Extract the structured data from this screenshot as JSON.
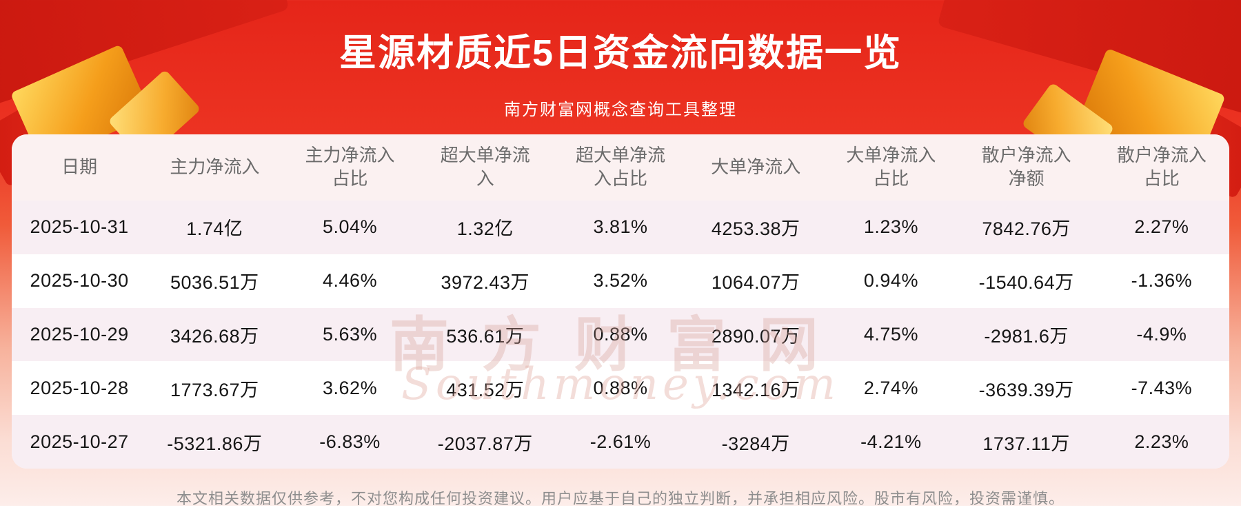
{
  "page": {
    "title": "星源材质近5日资金流向数据一览",
    "subtitle": "南方财富网概念查询工具整理",
    "disclaimer": "本文相关数据仅供参考，不对您构成任何投资建议。用户应基于自己的独立判断，并承担相应风险。股市有风险，投资需谨慎。"
  },
  "watermark": {
    "cn": "南方财富网",
    "en": "Southmoney.com"
  },
  "colors": {
    "banner_red": "#e8251c",
    "deep_red": "#c9170f",
    "gold": "#f5a11f",
    "card_bg": "#ffffff",
    "row_pink": "#f8eef3",
    "header_bg": "#fbf1f1",
    "header_text": "#6b6b6b",
    "cell_text": "#161616",
    "footer_text": "#8e8e8e"
  },
  "table": {
    "headers": [
      "日期",
      "主力净流入",
      "主力净流入\n占比",
      "超大单净流\n入",
      "超大单净流\n入占比",
      "大单净流入",
      "大单净流入\n占比",
      "散户净流入\n净额",
      "散户净流入\n占比"
    ],
    "rows": [
      [
        "2025-10-31",
        "1.74亿",
        "5.04%",
        "1.32亿",
        "3.81%",
        "4253.38万",
        "1.23%",
        "7842.76万",
        "2.27%"
      ],
      [
        "2025-10-30",
        "5036.51万",
        "4.46%",
        "3972.43万",
        "3.52%",
        "1064.07万",
        "0.94%",
        "-1540.64万",
        "-1.36%"
      ],
      [
        "2025-10-29",
        "3426.68万",
        "5.63%",
        "536.61万",
        "0.88%",
        "2890.07万",
        "4.75%",
        "-2981.6万",
        "-4.9%"
      ],
      [
        "2025-10-28",
        "1773.67万",
        "3.62%",
        "431.52万",
        "0.88%",
        "1342.16万",
        "2.74%",
        "-3639.39万",
        "-7.43%"
      ],
      [
        "2025-10-27",
        "-5321.86万",
        "-6.83%",
        "-2037.87万",
        "-2.61%",
        "-3284万",
        "-4.21%",
        "1737.11万",
        "2.23%"
      ]
    ]
  },
  "chart_data": {
    "type": "table",
    "title": "星源材质近5日资金流向数据一览",
    "subtitle": "南方财富网概念查询工具整理",
    "columns": [
      "日期",
      "主力净流入",
      "主力净流入占比",
      "超大单净流入",
      "超大单净流入占比",
      "大单净流入",
      "大单净流入占比",
      "散户净流入净额",
      "散户净流入占比"
    ],
    "rows": [
      [
        "2025-10-31",
        "1.74亿",
        "5.04%",
        "1.32亿",
        "3.81%",
        "4253.38万",
        "1.23%",
        "7842.76万",
        "2.27%"
      ],
      [
        "2025-10-30",
        "5036.51万",
        "4.46%",
        "3972.43万",
        "3.52%",
        "1064.07万",
        "0.94%",
        "-1540.64万",
        "-1.36%"
      ],
      [
        "2025-10-29",
        "3426.68万",
        "5.63%",
        "536.61万",
        "0.88%",
        "2890.07万",
        "4.75%",
        "-2981.6万",
        "-4.9%"
      ],
      [
        "2025-10-28",
        "1773.67万",
        "3.62%",
        "431.52万",
        "0.88%",
        "1342.16万",
        "2.74%",
        "-3639.39万",
        "-7.43%"
      ],
      [
        "2025-10-27",
        "-5321.86万",
        "-6.83%",
        "-2037.87万",
        "-2.61%",
        "-3284万",
        "-4.21%",
        "1737.11万",
        "2.23%"
      ]
    ]
  }
}
